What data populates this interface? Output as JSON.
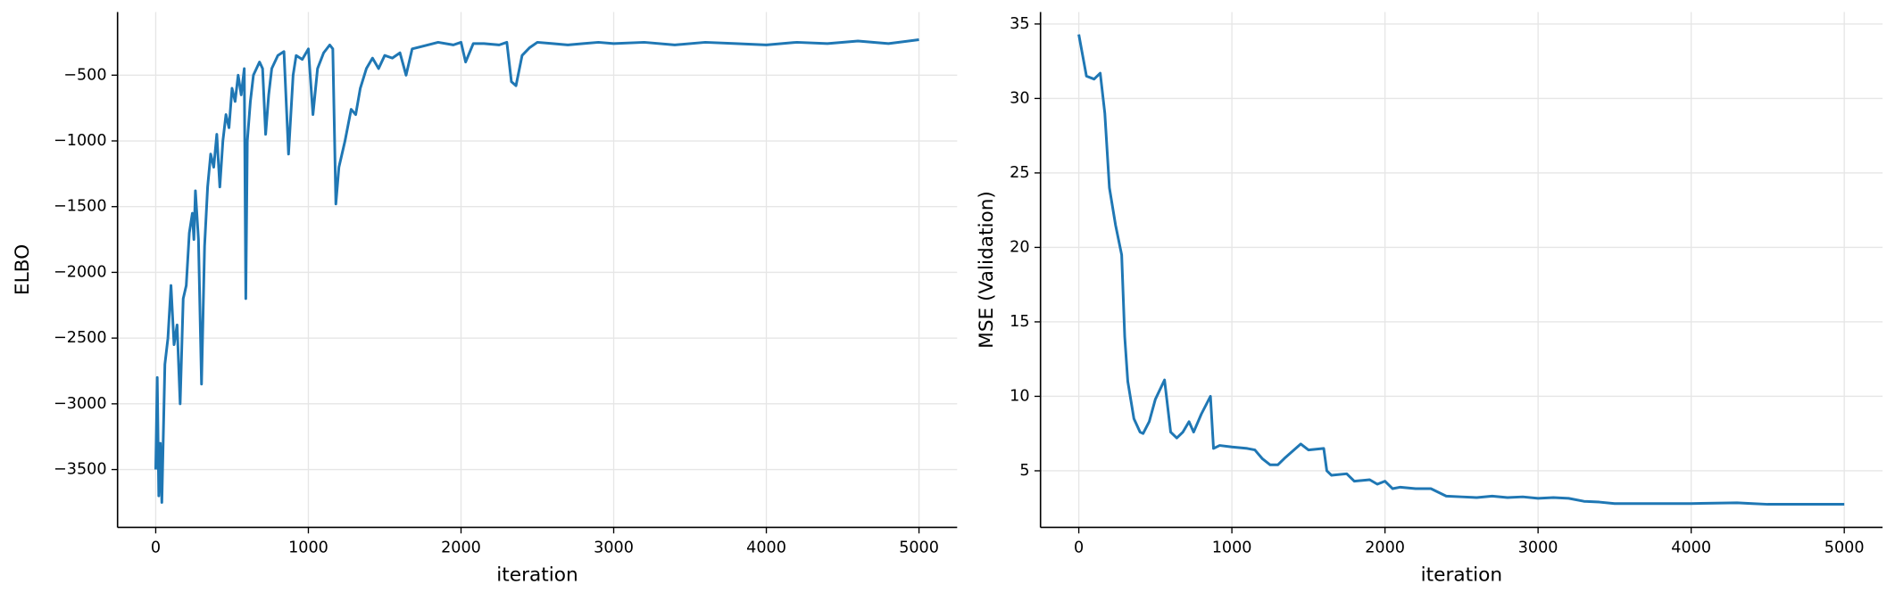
{
  "chart_data": [
    {
      "type": "line",
      "xlabel": "iteration",
      "ylabel": "ELBO",
      "grid": true,
      "xlim": [
        -250,
        5250
      ],
      "ylim": [
        -3940,
        -20
      ],
      "xticks": [
        0,
        1000,
        2000,
        3000,
        4000,
        5000
      ],
      "yticks": [
        {
          "value": -3500,
          "label": "−3500"
        },
        {
          "value": -3000,
          "label": "−3000"
        },
        {
          "value": -2500,
          "label": "−2500"
        },
        {
          "value": -2000,
          "label": "−2000"
        },
        {
          "value": -1500,
          "label": "−1500"
        },
        {
          "value": -1000,
          "label": "−1000"
        },
        {
          "value": -500,
          "label": "−500"
        }
      ],
      "x": [
        0,
        10,
        20,
        30,
        40,
        60,
        80,
        100,
        120,
        140,
        160,
        180,
        200,
        220,
        240,
        250,
        260,
        280,
        300,
        320,
        340,
        360,
        380,
        400,
        420,
        440,
        460,
        480,
        500,
        520,
        540,
        560,
        580,
        590,
        600,
        620,
        640,
        660,
        680,
        700,
        720,
        740,
        760,
        800,
        840,
        870,
        900,
        920,
        960,
        1000,
        1030,
        1060,
        1100,
        1140,
        1160,
        1180,
        1200,
        1240,
        1280,
        1310,
        1340,
        1380,
        1420,
        1460,
        1500,
        1550,
        1600,
        1640,
        1680,
        1750,
        1850,
        1950,
        2000,
        2030,
        2080,
        2150,
        2250,
        2300,
        2330,
        2360,
        2400,
        2450,
        2500,
        2600,
        2700,
        2800,
        2900,
        3000,
        3200,
        3400,
        3600,
        3800,
        4000,
        4200,
        4400,
        4600,
        4800,
        5000
      ],
      "series": [
        {
          "name": "ELBO",
          "color": "#1f77b4",
          "values": [
            -3500,
            -2800,
            -3700,
            -3300,
            -3750,
            -2700,
            -2500,
            -2100,
            -2550,
            -2400,
            -3000,
            -2200,
            -2100,
            -1700,
            -1550,
            -1750,
            -1380,
            -1750,
            -2850,
            -1800,
            -1350,
            -1100,
            -1200,
            -950,
            -1350,
            -1000,
            -800,
            -900,
            -600,
            -700,
            -500,
            -650,
            -450,
            -2200,
            -1000,
            -700,
            -500,
            -450,
            -400,
            -450,
            -950,
            -650,
            -450,
            -350,
            -320,
            -1100,
            -500,
            -350,
            -380,
            -300,
            -800,
            -450,
            -330,
            -270,
            -300,
            -1480,
            -1200,
            -1000,
            -760,
            -800,
            -600,
            -450,
            -370,
            -450,
            -350,
            -370,
            -330,
            -500,
            -300,
            -280,
            -250,
            -270,
            -250,
            -400,
            -260,
            -260,
            -270,
            -250,
            -550,
            -580,
            -350,
            -290,
            -250,
            -260,
            -270,
            -260,
            -250,
            -260,
            -250,
            -270,
            -250,
            -260,
            -270,
            -250,
            -260,
            -240,
            -260,
            -230
          ]
        }
      ]
    },
    {
      "type": "line",
      "xlabel": "iteration",
      "ylabel": "MSE (Validation)",
      "grid": true,
      "xlim": [
        -250,
        5250
      ],
      "ylim": [
        1.2,
        35.8
      ],
      "xticks": [
        0,
        1000,
        2000,
        3000,
        4000,
        5000
      ],
      "yticks": [
        5,
        10,
        15,
        20,
        25,
        30,
        35
      ],
      "x": [
        0,
        50,
        100,
        140,
        170,
        200,
        240,
        280,
        300,
        320,
        360,
        400,
        420,
        460,
        500,
        560,
        600,
        640,
        680,
        720,
        750,
        800,
        860,
        880,
        920,
        1000,
        1100,
        1150,
        1200,
        1250,
        1300,
        1350,
        1450,
        1500,
        1600,
        1620,
        1650,
        1750,
        1800,
        1900,
        1950,
        2000,
        2050,
        2100,
        2200,
        2300,
        2400,
        2500,
        2600,
        2700,
        2800,
        2900,
        3000,
        3100,
        3200,
        3300,
        3400,
        3500,
        3700,
        4000,
        4300,
        4400,
        4500,
        5000
      ],
      "series": [
        {
          "name": "MSE (Validation)",
          "color": "#1f77b4",
          "values": [
            34.3,
            31.5,
            31.3,
            31.7,
            29,
            24,
            21.5,
            19.5,
            14,
            11,
            8.5,
            7.6,
            7.5,
            8.3,
            9.8,
            11.1,
            7.6,
            7.2,
            7.6,
            8.3,
            7.6,
            8.8,
            10,
            6.5,
            6.7,
            6.6,
            6.5,
            6.4,
            5.8,
            5.4,
            5.4,
            5.9,
            6.8,
            6.4,
            6.5,
            5.0,
            4.7,
            4.8,
            4.3,
            4.4,
            4.1,
            4.3,
            3.8,
            3.9,
            3.8,
            3.8,
            3.3,
            3.25,
            3.2,
            3.3,
            3.2,
            3.25,
            3.15,
            3.2,
            3.15,
            2.95,
            2.9,
            2.8,
            2.8,
            2.8,
            2.85,
            2.8,
            2.75,
            2.75
          ]
        }
      ]
    }
  ]
}
